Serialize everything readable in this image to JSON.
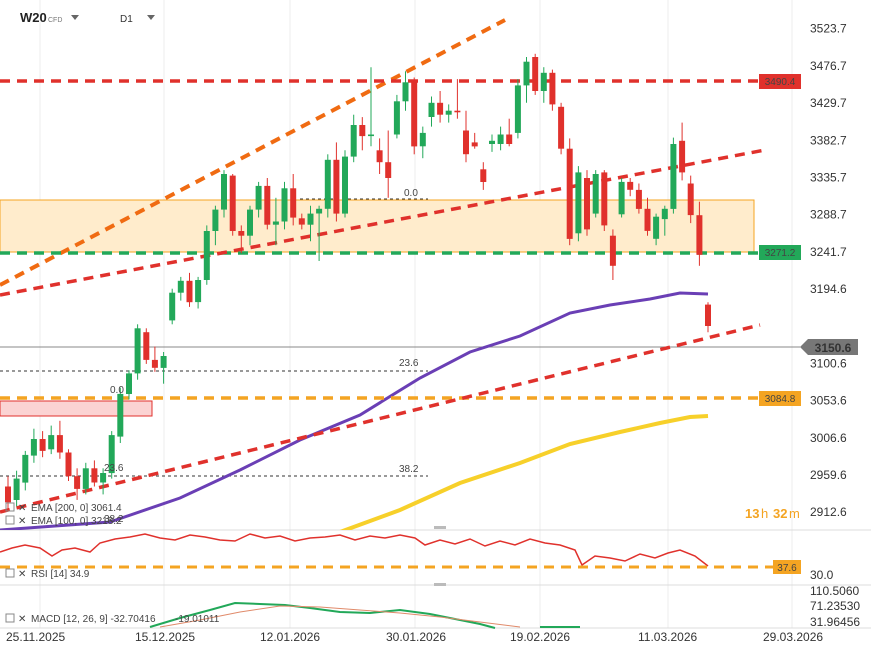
{
  "header": {
    "symbol": "W20",
    "symbol_tag": "CFD",
    "timeframe": "D1"
  },
  "countdown": {
    "hours": "13",
    "h": "h",
    "minutes": "32",
    "m": "m"
  },
  "indicators": {
    "ema200": "EMA [200, 0] 3061.4",
    "ema100": "EMA [100, 0] 3218.2",
    "rsi": "RSI [14] 34.9",
    "macd_name": "MACD [12, 26, 9] -32.70416",
    "macd_signal": "-19.01011"
  },
  "price_axis": {
    "ticks": [
      "3523.7",
      "3476.7",
      "3429.7",
      "3382.7",
      "3335.7",
      "3288.7",
      "3241.7",
      "3194.6",
      "3100.6",
      "3053.6",
      "3006.6",
      "2959.6",
      "2912.6"
    ],
    "badges": [
      {
        "text": "3490.4",
        "color": "#e0312c"
      },
      {
        "text": "3271.2",
        "color": "#22a859"
      },
      {
        "text": "3150.6",
        "color": "#777777"
      },
      {
        "text": "3084.8",
        "color": "#f4a422"
      }
    ]
  },
  "rsi_axis": {
    "level": "37.6",
    "level_color": "#f4a422",
    "bottom": "30.0"
  },
  "macd_axis": [
    "110.5060",
    "71.23530",
    "31.96456"
  ],
  "date_axis": [
    "25.11.2025",
    "15.12.2025",
    "12.01.2026",
    "30.01.2026",
    "19.02.2026",
    "11.03.2026",
    "29.03.2026"
  ],
  "fib_labels": {
    "upper_zero": "0.0",
    "mid_236": "23.6",
    "left_zero": "0.0",
    "left_236": "23.6",
    "left_382": "38.2",
    "mid_382": "38.2",
    "bottom_382": "38.2"
  },
  "chart_data": {
    "type": "candlestick",
    "ylim": [
      2890,
      3560
    ],
    "colors": {
      "up": "#22a859",
      "down": "#e0312c",
      "ema100": "#6a3fb5",
      "ema200": "#f7d02a",
      "resistance": "#e0312c",
      "support": "#22a859",
      "channel": "#f06b12",
      "fib_support": "#f4a422",
      "zone": "#ffeccc"
    },
    "candles": [
      {
        "o": 2945,
        "h": 2958,
        "l": 2915,
        "c": 2925
      },
      {
        "o": 2928,
        "h": 2965,
        "l": 2920,
        "c": 2955
      },
      {
        "o": 2950,
        "h": 2990,
        "l": 2940,
        "c": 2985
      },
      {
        "o": 2984,
        "h": 3018,
        "l": 2975,
        "c": 3005
      },
      {
        "o": 3005,
        "h": 3015,
        "l": 2982,
        "c": 2990
      },
      {
        "o": 2992,
        "h": 3022,
        "l": 2986,
        "c": 3010
      },
      {
        "o": 3010,
        "h": 3028,
        "l": 2980,
        "c": 2988
      },
      {
        "o": 2988,
        "h": 2992,
        "l": 2952,
        "c": 2958
      },
      {
        "o": 2958,
        "h": 2968,
        "l": 2928,
        "c": 2942
      },
      {
        "o": 2942,
        "h": 2975,
        "l": 2935,
        "c": 2968
      },
      {
        "o": 2968,
        "h": 2978,
        "l": 2945,
        "c": 2950
      },
      {
        "o": 2950,
        "h": 2968,
        "l": 2935,
        "c": 2962
      },
      {
        "o": 2962,
        "h": 3015,
        "l": 2955,
        "c": 3010
      },
      {
        "o": 3008,
        "h": 3070,
        "l": 3000,
        "c": 3062
      },
      {
        "o": 3062,
        "h": 3092,
        "l": 3055,
        "c": 3088
      },
      {
        "o": 3088,
        "h": 3150,
        "l": 3080,
        "c": 3145
      },
      {
        "o": 3140,
        "h": 3145,
        "l": 3100,
        "c": 3105
      },
      {
        "o": 3105,
        "h": 3122,
        "l": 3090,
        "c": 3095
      },
      {
        "o": 3095,
        "h": 3115,
        "l": 3075,
        "c": 3110
      },
      {
        "o": 3155,
        "h": 3195,
        "l": 3150,
        "c": 3190
      },
      {
        "o": 3190,
        "h": 3210,
        "l": 3180,
        "c": 3205
      },
      {
        "o": 3205,
        "h": 3215,
        "l": 3172,
        "c": 3178
      },
      {
        "o": 3178,
        "h": 3210,
        "l": 3170,
        "c": 3206
      },
      {
        "o": 3206,
        "h": 3275,
        "l": 3200,
        "c": 3268
      },
      {
        "o": 3268,
        "h": 3300,
        "l": 3250,
        "c": 3295
      },
      {
        "o": 3295,
        "h": 3345,
        "l": 3285,
        "c": 3340
      },
      {
        "o": 3338,
        "h": 3340,
        "l": 3262,
        "c": 3268
      },
      {
        "o": 3268,
        "h": 3275,
        "l": 3240,
        "c": 3262
      },
      {
        "o": 3262,
        "h": 3300,
        "l": 3250,
        "c": 3295
      },
      {
        "o": 3295,
        "h": 3330,
        "l": 3285,
        "c": 3325
      },
      {
        "o": 3325,
        "h": 3335,
        "l": 3270,
        "c": 3276
      },
      {
        "o": 3276,
        "h": 3310,
        "l": 3250,
        "c": 3280
      },
      {
        "o": 3280,
        "h": 3330,
        "l": 3270,
        "c": 3322
      },
      {
        "o": 3322,
        "h": 3340,
        "l": 3275,
        "c": 3285
      },
      {
        "o": 3284,
        "h": 3290,
        "l": 3270,
        "c": 3276
      },
      {
        "o": 3276,
        "h": 3300,
        "l": 3255,
        "c": 3290
      },
      {
        "o": 3290,
        "h": 3300,
        "l": 3230,
        "c": 3296
      },
      {
        "o": 3296,
        "h": 3365,
        "l": 3285,
        "c": 3358
      },
      {
        "o": 3358,
        "h": 3380,
        "l": 3280,
        "c": 3290
      },
      {
        "o": 3290,
        "h": 3370,
        "l": 3285,
        "c": 3362
      },
      {
        "o": 3362,
        "h": 3415,
        "l": 3355,
        "c": 3402
      },
      {
        "o": 3402,
        "h": 3412,
        "l": 3370,
        "c": 3388
      },
      {
        "o": 3388,
        "h": 3475,
        "l": 3375,
        "c": 3390
      },
      {
        "o": 3370,
        "h": 3385,
        "l": 3340,
        "c": 3355
      },
      {
        "o": 3355,
        "h": 3395,
        "l": 3310,
        "c": 3335
      },
      {
        "o": 3390,
        "h": 3440,
        "l": 3385,
        "c": 3432
      },
      {
        "o": 3432,
        "h": 3470,
        "l": 3420,
        "c": 3456
      },
      {
        "o": 3456,
        "h": 3462,
        "l": 3365,
        "c": 3375
      },
      {
        "o": 3375,
        "h": 3400,
        "l": 3360,
        "c": 3392
      },
      {
        "o": 3412,
        "h": 3438,
        "l": 3400,
        "c": 3430
      },
      {
        "o": 3430,
        "h": 3445,
        "l": 3405,
        "c": 3415
      },
      {
        "o": 3415,
        "h": 3428,
        "l": 3405,
        "c": 3420
      },
      {
        "o": 3420,
        "h": 3460,
        "l": 3410,
        "c": 3418
      },
      {
        "o": 3395,
        "h": 3420,
        "l": 3355,
        "c": 3365
      },
      {
        "o": 3380,
        "h": 3392,
        "l": 3372,
        "c": 3375
      },
      {
        "o": 3346,
        "h": 3355,
        "l": 3320,
        "c": 3330
      },
      {
        "o": 3378,
        "h": 3390,
        "l": 3368,
        "c": 3382
      },
      {
        "o": 3378,
        "h": 3400,
        "l": 3370,
        "c": 3390
      },
      {
        "o": 3390,
        "h": 3410,
        "l": 3375,
        "c": 3378
      },
      {
        "o": 3392,
        "h": 3460,
        "l": 3385,
        "c": 3452
      },
      {
        "o": 3452,
        "h": 3488,
        "l": 3430,
        "c": 3482
      },
      {
        "o": 3488,
        "h": 3492,
        "l": 3440,
        "c": 3445
      },
      {
        "o": 3445,
        "h": 3475,
        "l": 3430,
        "c": 3468
      },
      {
        "o": 3468,
        "h": 3472,
        "l": 3420,
        "c": 3428
      },
      {
        "o": 3425,
        "h": 3430,
        "l": 3365,
        "c": 3372
      },
      {
        "o": 3372,
        "h": 3385,
        "l": 3250,
        "c": 3258
      },
      {
        "o": 3265,
        "h": 3350,
        "l": 3255,
        "c": 3342
      },
      {
        "o": 3335,
        "h": 3345,
        "l": 3262,
        "c": 3270
      },
      {
        "o": 3290,
        "h": 3345,
        "l": 3285,
        "c": 3340
      },
      {
        "o": 3342,
        "h": 3345,
        "l": 3268,
        "c": 3275
      },
      {
        "o": 3262,
        "h": 3270,
        "l": 3206,
        "c": 3224
      },
      {
        "o": 3289,
        "h": 3335,
        "l": 3285,
        "c": 3330
      },
      {
        "o": 3330,
        "h": 3335,
        "l": 3312,
        "c": 3320
      },
      {
        "o": 3320,
        "h": 3328,
        "l": 3290,
        "c": 3296
      },
      {
        "o": 3296,
        "h": 3310,
        "l": 3262,
        "c": 3268
      },
      {
        "o": 3258,
        "h": 3290,
        "l": 3250,
        "c": 3286
      },
      {
        "o": 3283,
        "h": 3300,
        "l": 3262,
        "c": 3296
      },
      {
        "o": 3296,
        "h": 3386,
        "l": 3290,
        "c": 3378
      },
      {
        "o": 3382,
        "h": 3405,
        "l": 3332,
        "c": 3342
      },
      {
        "o": 3328,
        "h": 3338,
        "l": 3278,
        "c": 3288
      },
      {
        "o": 3288,
        "h": 3305,
        "l": 3224,
        "c": 3238
      },
      {
        "o": 3175,
        "h": 3178,
        "l": 3140,
        "c": 3148
      }
    ]
  }
}
